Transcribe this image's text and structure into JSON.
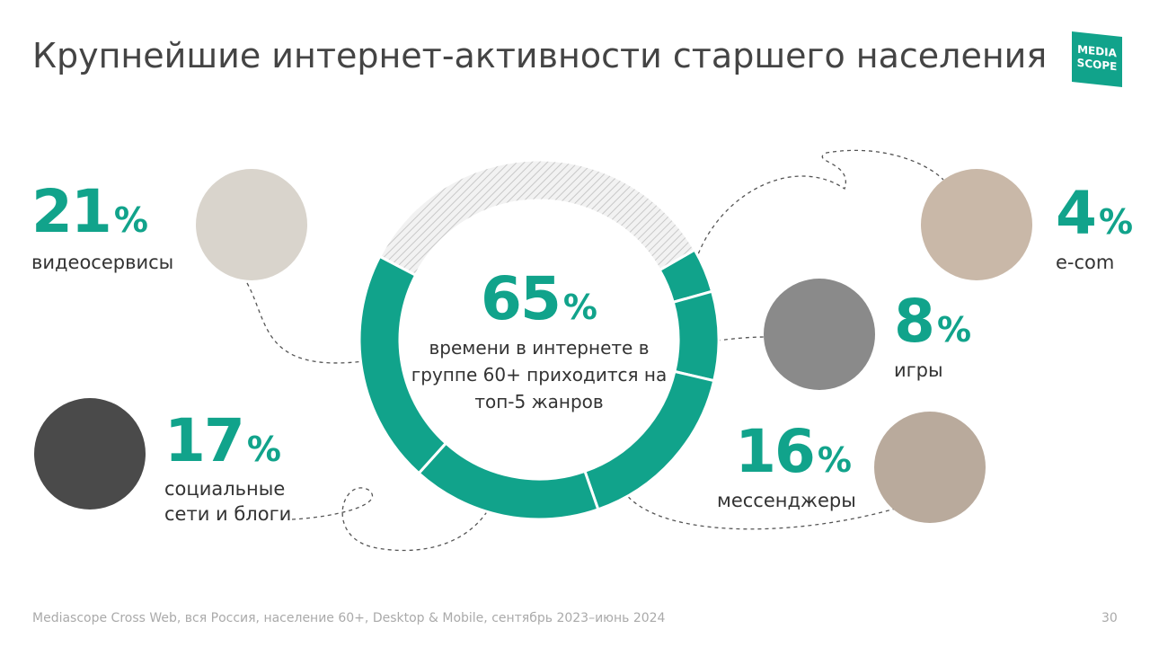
{
  "header": {
    "title": "Крупнейшие интернет-активности старшего населения",
    "logo": [
      "MEDIA",
      "SCOPE"
    ]
  },
  "chart_data": {
    "type": "donut",
    "total_label": "65%",
    "total_caption": "времени в интернете в группе 60+ приходится на топ-5 жанров",
    "categories": [
      "e-com",
      "игры",
      "мессенджеры",
      "социальные сети и блоги",
      "видеосервисы"
    ],
    "values": [
      4,
      8,
      16,
      17,
      21
    ],
    "value_labels": [
      "4%",
      "8%",
      "16%",
      "17%",
      "21%"
    ],
    "color": "#11a38b"
  },
  "footer": {
    "source": "Mediascope Cross Web, вся Россия, население 60+, Desktop & Mobile, сентябрь 2023–июнь 2024",
    "page": "30"
  }
}
